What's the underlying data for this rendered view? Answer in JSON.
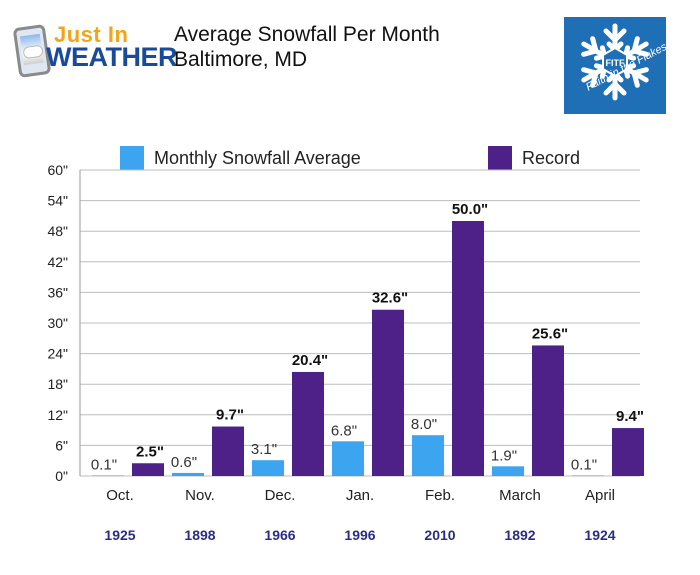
{
  "logo": {
    "line1": "Just In",
    "line2": "WEATHER"
  },
  "header": {
    "title": "Average Snowfall Per Month",
    "subtitle": "Baltimore, MD"
  },
  "badge": {
    "monogram": "FITF",
    "tagline": "Faith in the Flakes",
    "color": "#1f6fb6"
  },
  "colors": {
    "average": "#3da5ef",
    "record": "#4e2188",
    "year_text": "#2c2c86",
    "gridline": "#bdbdbd"
  },
  "chart_data": {
    "type": "bar",
    "title": "Average Snowfall Per Month",
    "subtitle": "Baltimore, MD",
    "categories": [
      "Oct.",
      "Nov.",
      "Dec.",
      "Jan.",
      "Feb.",
      "March",
      "April"
    ],
    "record_years": [
      "1925",
      "1898",
      "1966",
      "1996",
      "2010",
      "1892",
      "1924"
    ],
    "series": [
      {
        "name": "Monthly Snowfall Average",
        "values": [
          0.1,
          0.6,
          3.1,
          6.8,
          8.0,
          1.9,
          0.1
        ],
        "labels": [
          "0.1\"",
          "0.6\"",
          "3.1\"",
          "6.8\"",
          "8.0\"",
          "1.9\"",
          "0.1\""
        ]
      },
      {
        "name": "Record",
        "values": [
          2.5,
          9.7,
          20.4,
          32.6,
          50.0,
          25.6,
          9.4
        ],
        "labels": [
          "2.5\"",
          "9.7\"",
          "20.4\"",
          "32.6\"",
          "50.0\"",
          "25.6\"",
          "9.4\""
        ]
      }
    ],
    "yticks": [
      "0\"",
      "6\"",
      "12\"",
      "18\"",
      "24\"",
      "30\"",
      "36\"",
      "42\"",
      "48\"",
      "54\"",
      "60\""
    ],
    "ylim": [
      0,
      60
    ],
    "ytick_step": 6,
    "grid": true,
    "legend_position": "top"
  }
}
